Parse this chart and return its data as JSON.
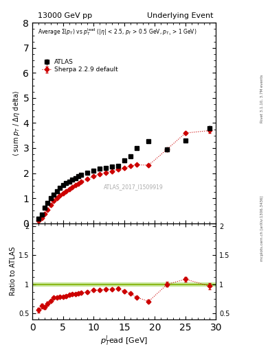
{
  "title_left": "13000 GeV pp",
  "title_right": "Underlying Event",
  "annotation": "ATLAS_2017_I1509919",
  "right_label_top": "Rivet 3.1.10, 3.7M events",
  "right_label_bot": "mcplots.cern.ch [arXiv:1306.3436]",
  "main_ylabel": "⟨ sum p_T / Δη delta⟩",
  "ratio_ylabel": "Ratio to ATLAS",
  "xlabel": "p_T^lead [GeV]",
  "inset_text": "Average Σ(p_T) vs p_T^lead (|h| < 2.5, p_T > 0.5 GeV, p_{T_1} > 1 GeV)",
  "ylim_main": [
    0,
    8
  ],
  "ylim_ratio": [
    0.4,
    2.05
  ],
  "xlim": [
    0,
    30
  ],
  "atlas_x": [
    1.0,
    1.5,
    2.0,
    2.5,
    3.0,
    3.5,
    4.0,
    4.5,
    5.0,
    5.5,
    6.0,
    6.5,
    7.0,
    7.5,
    8.0,
    9.0,
    10.0,
    11.0,
    12.0,
    13.0,
    14.0,
    15.0,
    16.0,
    17.0,
    19.0,
    22.0,
    25.0,
    29.0
  ],
  "atlas_y": [
    0.18,
    0.35,
    0.62,
    0.82,
    1.0,
    1.15,
    1.28,
    1.4,
    1.52,
    1.6,
    1.67,
    1.73,
    1.8,
    1.87,
    1.93,
    2.02,
    2.1,
    2.17,
    2.2,
    2.25,
    2.3,
    2.5,
    2.68,
    3.0,
    3.28,
    2.95,
    3.3,
    3.8
  ],
  "atlas_yerr": [
    0.02,
    0.02,
    0.02,
    0.02,
    0.02,
    0.02,
    0.02,
    0.02,
    0.02,
    0.02,
    0.02,
    0.02,
    0.02,
    0.02,
    0.02,
    0.03,
    0.03,
    0.03,
    0.03,
    0.03,
    0.03,
    0.04,
    0.04,
    0.05,
    0.06,
    0.06,
    0.07,
    0.1
  ],
  "sherpa_x": [
    1.0,
    1.5,
    2.0,
    2.5,
    3.0,
    3.5,
    4.0,
    4.5,
    5.0,
    5.5,
    6.0,
    6.5,
    7.0,
    7.5,
    8.0,
    9.0,
    10.0,
    11.0,
    12.0,
    13.0,
    14.0,
    15.0,
    16.0,
    17.0,
    19.0,
    22.0,
    25.0,
    29.0
  ],
  "sherpa_y": [
    0.1,
    0.22,
    0.38,
    0.55,
    0.72,
    0.88,
    1.0,
    1.1,
    1.2,
    1.28,
    1.37,
    1.45,
    1.52,
    1.58,
    1.65,
    1.76,
    1.88,
    1.95,
    2.02,
    2.08,
    2.14,
    2.2,
    2.28,
    2.33,
    2.32,
    2.95,
    3.6,
    3.7
  ],
  "sherpa_yerr": [
    0.01,
    0.01,
    0.01,
    0.01,
    0.01,
    0.01,
    0.01,
    0.01,
    0.01,
    0.01,
    0.01,
    0.01,
    0.01,
    0.01,
    0.01,
    0.01,
    0.02,
    0.02,
    0.02,
    0.02,
    0.02,
    0.02,
    0.03,
    0.03,
    0.04,
    0.05,
    0.06,
    0.1
  ],
  "ratio_y": [
    0.56,
    0.63,
    0.61,
    0.67,
    0.72,
    0.77,
    0.78,
    0.79,
    0.79,
    0.8,
    0.82,
    0.84,
    0.84,
    0.85,
    0.86,
    0.87,
    0.9,
    0.9,
    0.92,
    0.92,
    0.93,
    0.88,
    0.85,
    0.78,
    0.71,
    1.0,
    1.09,
    0.97
  ],
  "ratio_yerr": [
    0.04,
    0.04,
    0.03,
    0.03,
    0.02,
    0.02,
    0.02,
    0.02,
    0.02,
    0.02,
    0.02,
    0.02,
    0.02,
    0.02,
    0.02,
    0.02,
    0.02,
    0.02,
    0.02,
    0.02,
    0.02,
    0.02,
    0.02,
    0.02,
    0.03,
    0.04,
    0.04,
    0.05
  ],
  "atlas_band_color": "#c8e6a0",
  "atlas_line_color": "#80b000",
  "sherpa_color": "#cc0000",
  "atlas_data_color": "#000000",
  "bg_color": "#ffffff"
}
